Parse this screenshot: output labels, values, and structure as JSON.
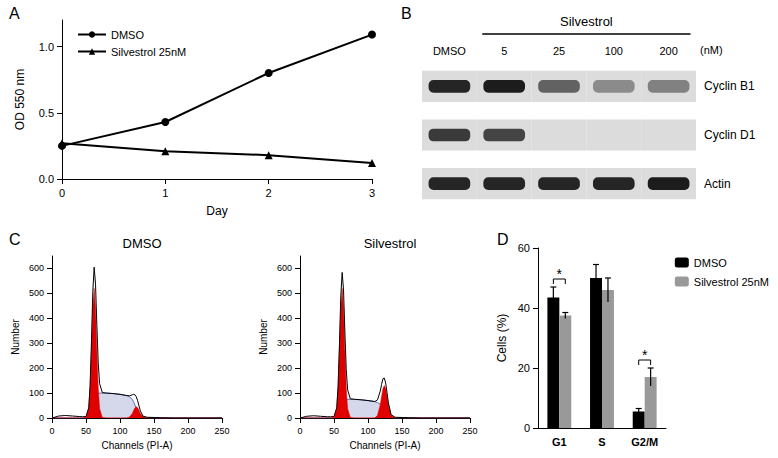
{
  "chart_data": [
    {
      "panel": "A",
      "type": "line",
      "x_label": "Day",
      "y_label": "OD 550 nm",
      "x": [
        0,
        1,
        2,
        3
      ],
      "xlim": [
        0,
        3
      ],
      "xticks": [
        0,
        1,
        2,
        3
      ],
      "ylim": [
        0,
        1.2
      ],
      "yticks": [
        {
          "value": 0,
          "label": "0.0"
        },
        0.5,
        {
          "value": 1,
          "label": "1.0"
        }
      ],
      "legend": "top-left",
      "series": [
        {
          "name": "DMSO",
          "color": "#000000",
          "marker": "circle",
          "values": [
            0.25,
            0.43,
            0.8,
            1.09
          ]
        },
        {
          "name": "Silvestrol 25nM",
          "color": "#000000",
          "marker": "triangle",
          "values": [
            0.27,
            0.21,
            0.18,
            0.12
          ]
        }
      ]
    },
    {
      "panel": "B",
      "type": "blot",
      "color": "#111111",
      "lanes": [
        "DMSO",
        "5",
        "25",
        "100",
        "200"
      ],
      "lane_group": {
        "label": "Silvestrol",
        "lanes": [
          "5",
          "25",
          "100",
          "200"
        ]
      },
      "unit": "(nM)",
      "rows": [
        {
          "name": "Cyclin B1",
          "values": [
            0.9,
            0.95,
            0.6,
            0.4,
            0.45
          ]
        },
        {
          "name": "Cyclin D1",
          "values": [
            0.8,
            0.75,
            0,
            0,
            0
          ]
        },
        {
          "name": "Actin",
          "values": [
            0.9,
            0.9,
            0.9,
            0.9,
            0.95
          ]
        }
      ]
    },
    {
      "panel": "C",
      "type": "flow",
      "x_label": "Channels (PI-A)",
      "y_label": "Number",
      "x": [
        0,
        10,
        20,
        30,
        40,
        45,
        50,
        54,
        56,
        58,
        60,
        62,
        64,
        66,
        68,
        70,
        74,
        80,
        90,
        100,
        110,
        114,
        118,
        120,
        122,
        124,
        126,
        128,
        130,
        134,
        140,
        150,
        160,
        180,
        200,
        250
      ],
      "xlim": [
        0,
        250
      ],
      "xticks": [
        0,
        50,
        100,
        150,
        200,
        250
      ],
      "ylim": [
        0,
        650
      ],
      "yticks": [
        0,
        100,
        200,
        300,
        400,
        500,
        600
      ],
      "plots": [
        {
          "title": "DMSO",
          "series": [
            {
              "type": "hatch",
              "color": "#3b4ea0",
              "values": [
                0,
                0,
                0,
                0,
                0,
                0,
                0,
                0,
                10,
                35,
                65,
                85,
                95,
                100,
                100,
                100,
                100,
                100,
                98,
                95,
                90,
                85,
                75,
                65,
                52,
                40,
                28,
                18,
                10,
                3,
                0,
                0,
                0,
                0,
                0,
                0
              ]
            },
            {
              "type": "area",
              "color": "#e00000",
              "values": [
                0,
                0,
                0,
                0,
                0,
                0,
                2,
                38,
                120,
                270,
                442,
                520,
                442,
                270,
                120,
                38,
                2,
                0,
                0,
                0,
                0,
                0,
                0,
                0,
                0,
                0,
                0,
                0,
                0,
                0,
                0,
                0,
                0,
                0,
                0,
                0
              ]
            },
            {
              "type": "area",
              "color": "#e00000",
              "values": [
                0,
                0,
                0,
                0,
                0,
                0,
                0,
                0,
                0,
                0,
                0,
                0,
                0,
                0,
                0,
                0,
                0,
                0,
                0,
                0,
                0,
                4,
                18,
                30,
                41,
                45,
                41,
                30,
                18,
                4,
                0,
                0,
                0,
                0,
                0,
                0
              ]
            },
            {
              "type": "line",
              "color": "#000000",
              "values": [
                0,
                8,
                10,
                8,
                6,
                5,
                6,
                41,
                130,
                305,
                507,
                605,
                537,
                370,
                220,
                138,
                102,
                100,
                98,
                95,
                90,
                89,
                93,
                95,
                93,
                85,
                69,
                48,
                28,
                7,
                3,
                2,
                1,
                0,
                0,
                0
              ]
            }
          ]
        },
        {
          "title": "Silvestrol",
          "series": [
            {
              "type": "hatch",
              "color": "#3b4ea0",
              "values": [
                0,
                0,
                0,
                0,
                0,
                0,
                0,
                0,
                8,
                26,
                48,
                64,
                72,
                75,
                75,
                75,
                75,
                75,
                73,
                70,
                66,
                62,
                55,
                48,
                40,
                30,
                22,
                14,
                8,
                2,
                0,
                0,
                0,
                0,
                0,
                0
              ]
            },
            {
              "type": "area",
              "color": "#e00000",
              "values": [
                0,
                0,
                0,
                0,
                0,
                0,
                2,
                38,
                120,
                270,
                442,
                520,
                442,
                270,
                120,
                38,
                2,
                0,
                0,
                0,
                0,
                0,
                0,
                0,
                0,
                0,
                0,
                0,
                0,
                0,
                0,
                0,
                0,
                0,
                0,
                0
              ]
            },
            {
              "type": "area",
              "color": "#e00000",
              "values": [
                0,
                0,
                0,
                0,
                0,
                0,
                0,
                0,
                0,
                0,
                0,
                0,
                0,
                0,
                0,
                0,
                0,
                0,
                0,
                0,
                0,
                11,
                53,
                87,
                118,
                130,
                118,
                87,
                53,
                11,
                0,
                0,
                0,
                0,
                0,
                0
              ]
            },
            {
              "type": "line",
              "color": "#000000",
              "values": [
                0,
                7,
                9,
                7,
                5,
                5,
                6,
                41,
                128,
                296,
                490,
                584,
                514,
                345,
                195,
                113,
                77,
                75,
                73,
                70,
                66,
                73,
                108,
                135,
                158,
                160,
                140,
                101,
                61,
                13,
                3,
                2,
                1,
                0,
                0,
                0
              ]
            }
          ]
        }
      ]
    },
    {
      "panel": "D",
      "type": "bar",
      "y_label": "Cells (%)",
      "categories": [
        "G1",
        "S",
        "G2/M"
      ],
      "ylim": [
        0,
        60
      ],
      "yticks": [
        0,
        20,
        40,
        60
      ],
      "legend": "top-right",
      "series": [
        {
          "name": "DMSO",
          "color": "#000000",
          "values": [
            43.5,
            50,
            5.5
          ],
          "errors": [
            3.5,
            4.5,
            1
          ]
        },
        {
          "name": "Silvestrol 25nM",
          "color": "#999999",
          "values": [
            37.5,
            46,
            17
          ],
          "errors": [
            1,
            4,
            3
          ]
        }
      ],
      "annotations": [
        {
          "text": "*",
          "category": "G1"
        },
        {
          "text": "*",
          "category": "G2/M"
        }
      ]
    }
  ]
}
